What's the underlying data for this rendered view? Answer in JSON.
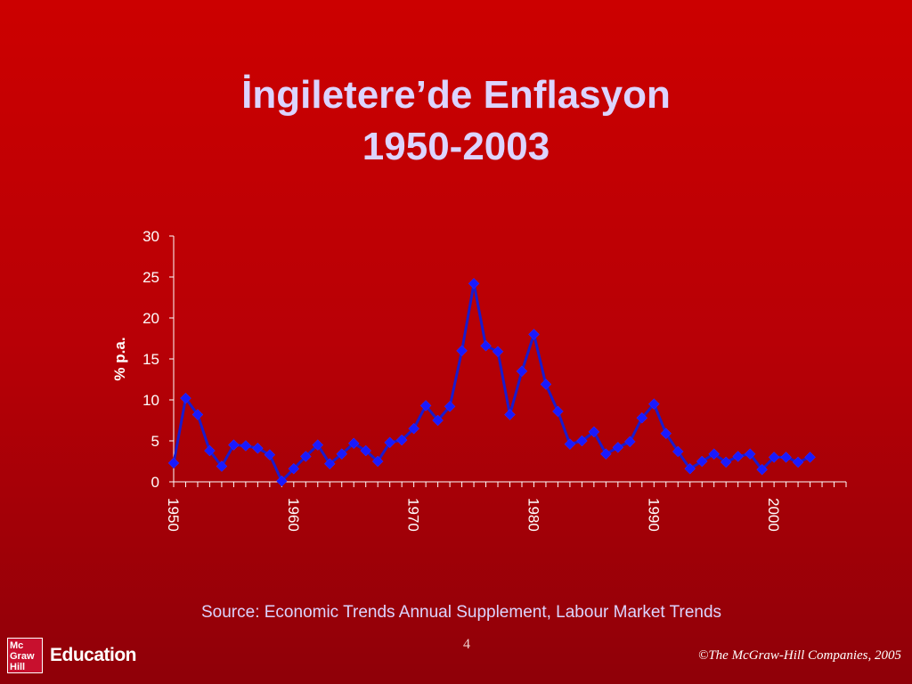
{
  "slide": {
    "title_line1": "İngiletere’de Enflasyon",
    "title_line2": "1950-2003",
    "source": "Source: Economic Trends Annual Supplement, Labour Market Trends",
    "page_number": "4",
    "copyright": "©The McGraw-Hill Companies, 2005",
    "logo": {
      "line1": "Mc",
      "line2": "Graw",
      "line3": "Hill",
      "word": "Education"
    }
  },
  "colors": {
    "line": "#1a1acc",
    "marker": "#1a1aff",
    "axis": "#ffffff",
    "text": "#ffffff",
    "title": "#dcd4ff"
  },
  "chart_data": {
    "type": "line",
    "title": "",
    "xlabel": "",
    "ylabel": "% p.a.",
    "ylim": [
      0,
      30
    ],
    "yticks": [
      0,
      5,
      10,
      15,
      20,
      25,
      30
    ],
    "xlim": [
      1950,
      2006
    ],
    "xticks": [
      1950,
      1960,
      1970,
      1980,
      1990,
      2000
    ],
    "grid": false,
    "series": [
      {
        "x": [
          1950,
          1951,
          1952,
          1953,
          1954,
          1955,
          1956,
          1957,
          1958,
          1959,
          1960,
          1961,
          1962,
          1963,
          1964,
          1965,
          1966,
          1967,
          1968,
          1969,
          1970,
          1971,
          1972,
          1973,
          1974,
          1975,
          1976,
          1977,
          1978,
          1979,
          1980,
          1981,
          1982,
          1983,
          1984,
          1985,
          1986,
          1987,
          1988,
          1989,
          1990,
          1991,
          1992,
          1993,
          1994,
          1995,
          1996,
          1997,
          1998,
          1999,
          2000,
          2001,
          2002,
          2003
        ],
        "values": [
          2.3,
          10.2,
          8.2,
          3.8,
          1.9,
          4.5,
          4.4,
          4.1,
          3.3,
          0.1,
          1.6,
          3.1,
          4.5,
          2.2,
          3.4,
          4.7,
          3.8,
          2.5,
          4.8,
          5.1,
          6.5,
          9.3,
          7.5,
          9.2,
          16.0,
          24.2,
          16.6,
          15.9,
          8.2,
          13.5,
          18.0,
          11.9,
          8.6,
          4.6,
          5.0,
          6.1,
          3.4,
          4.2,
          4.9,
          7.8,
          9.5,
          5.9,
          3.7,
          1.6,
          2.5,
          3.4,
          2.4,
          3.1,
          3.4,
          1.5,
          3.0,
          3.0,
          2.4,
          3.0
        ]
      }
    ]
  }
}
